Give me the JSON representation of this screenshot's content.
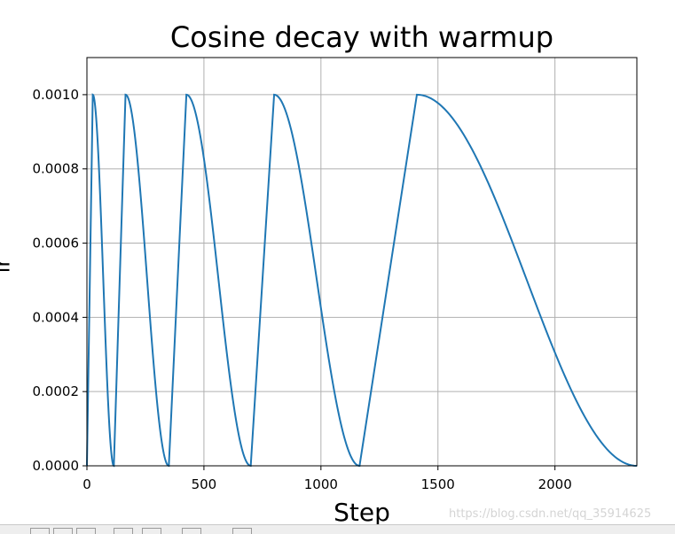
{
  "chart_data": {
    "type": "line",
    "title": "Cosine decay with warmup",
    "xlabel": "Step",
    "ylabel": "lr",
    "xlim": [
      0,
      2350
    ],
    "ylim": [
      0,
      0.0011
    ],
    "grid": true,
    "x_ticks": [
      0,
      500,
      1000,
      1500,
      2000
    ],
    "x_tick_labels": [
      "0",
      "500",
      "1000",
      "1500",
      "2000"
    ],
    "y_ticks": [
      0.0,
      0.0002,
      0.0004,
      0.0006,
      0.0008,
      0.001
    ],
    "y_tick_labels": [
      "0.0000",
      "0.0002",
      "0.0004",
      "0.0006",
      "0.0008",
      "0.0010"
    ],
    "series": [
      {
        "color": "#1f77b4",
        "cycles": [
          {
            "start": 0,
            "peak": 25,
            "end": 115,
            "max_lr": 0.001
          },
          {
            "start": 115,
            "peak": 165,
            "end": 350,
            "max_lr": 0.001
          },
          {
            "start": 350,
            "peak": 425,
            "end": 700,
            "max_lr": 0.001
          },
          {
            "start": 700,
            "peak": 800,
            "end": 1165,
            "max_lr": 0.001
          },
          {
            "start": 1165,
            "peak": 1410,
            "end": 2350,
            "max_lr": 0.001
          }
        ]
      }
    ]
  },
  "watermark": "https://blog.csdn.net/qq_35914625"
}
